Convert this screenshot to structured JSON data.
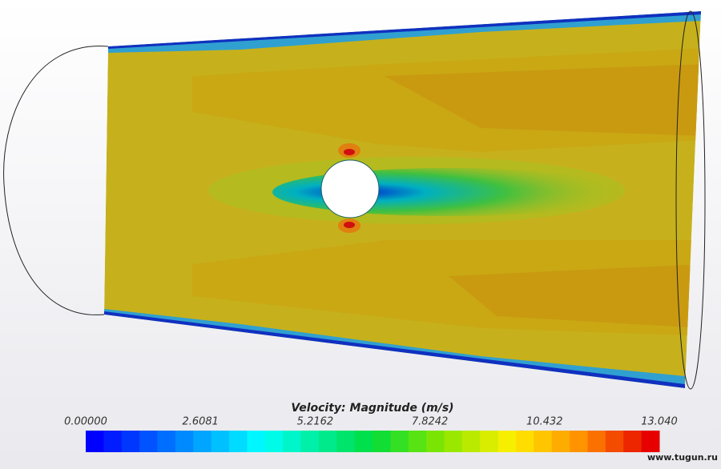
{
  "colorbar": {
    "title": "Velocity: Magnitude (m/s)",
    "tick_labels": [
      "0.00000",
      "2.6081",
      "5.2162",
      "7.8242",
      "10.432",
      "13.040"
    ]
  },
  "watermark": "www.tugun.ru"
}
